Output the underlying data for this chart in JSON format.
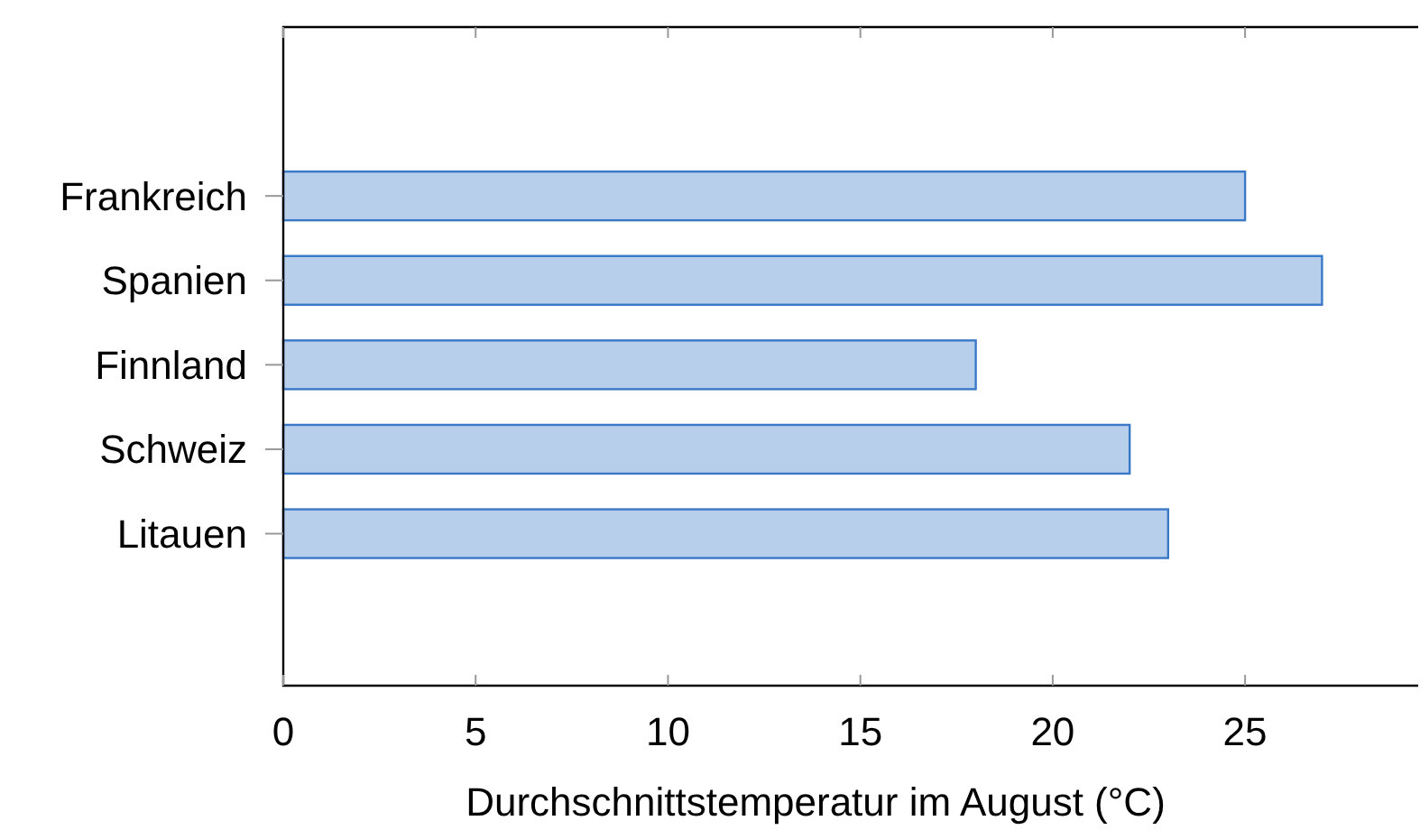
{
  "chart_data": {
    "type": "bar",
    "orientation": "horizontal",
    "xlabel": "Durchschnittstemperatur im August (°C)",
    "categories": [
      "Frankreich",
      "Spanien",
      "Finnland",
      "Schweiz",
      "Litauen"
    ],
    "values": [
      25,
      27,
      18,
      22,
      23
    ],
    "color": "#b8cfeb",
    "xlim": [
      0,
      29.5
    ],
    "xticks": [
      0,
      5,
      10,
      15,
      20,
      25
    ],
    "grid": false
  }
}
